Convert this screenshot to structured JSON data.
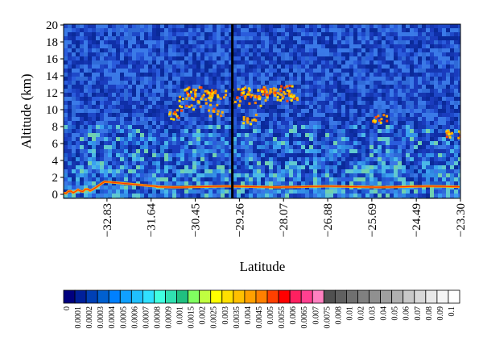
{
  "chart_data": {
    "type": "heatmap",
    "title": "",
    "xlabel": "Latitude",
    "ylabel": "Altitude (km)",
    "y_ticks": [
      "0",
      "2",
      "4",
      "6",
      "8",
      "10",
      "12",
      "14",
      "16",
      "18",
      "20"
    ],
    "ylim": [
      0,
      20
    ],
    "x_ticks": [
      "−32.83",
      "−31.64",
      "−30.45",
      "−29.26",
      "−28.07",
      "−26.88",
      "−25.69",
      "−24.49",
      "−23.30"
    ],
    "xlim": [
      -34.0,
      -23.3
    ],
    "grid": false,
    "colorbar_labels": [
      "0",
      "0.0001",
      "0.0002",
      "0.0003",
      "0.0004",
      "0.0005",
      "0.0006",
      "0.0007",
      "0.0008",
      "0.0009",
      "0.001",
      "0.0015",
      "0.002",
      "0.0025",
      "0.003",
      "0.0035",
      "0.004",
      "0.0045",
      "0.005",
      "0.0055",
      "0.006",
      "0.0065",
      "0.007",
      "0.0075",
      "0.008",
      "0.01",
      "0.02",
      "0.03",
      "0.04",
      "0.05",
      "0.06",
      "0.07",
      "0.08",
      "0.09",
      "0.1"
    ],
    "colorbar_colors": [
      "#00007f",
      "#00209a",
      "#0040b5",
      "#0060d0",
      "#0080ff",
      "#10a0ff",
      "#20c0ff",
      "#30e0ff",
      "#40ffe0",
      "#30e0b0",
      "#20c080",
      "#80ff60",
      "#c0ff40",
      "#ffff00",
      "#ffe000",
      "#ffc000",
      "#ffa000",
      "#ff8000",
      "#ff4000",
      "#ff0000",
      "#ff2060",
      "#ff4090",
      "#ff80c0",
      "#505050",
      "#606060",
      "#707070",
      "#808080",
      "#909090",
      "#a0a0a0",
      "#b0b0b0",
      "#c8c8c8",
      "#d8d8d8",
      "#e8e8e8",
      "#f4f4f4",
      "#ffffff"
    ],
    "features": {
      "surface_layer_altitude_km": 1.0,
      "cirrus_altitude_km": [
        8,
        13
      ],
      "cirrus_latitude_range": [
        -31.0,
        -28.0
      ],
      "data_gap_latitude": -29.45
    }
  }
}
